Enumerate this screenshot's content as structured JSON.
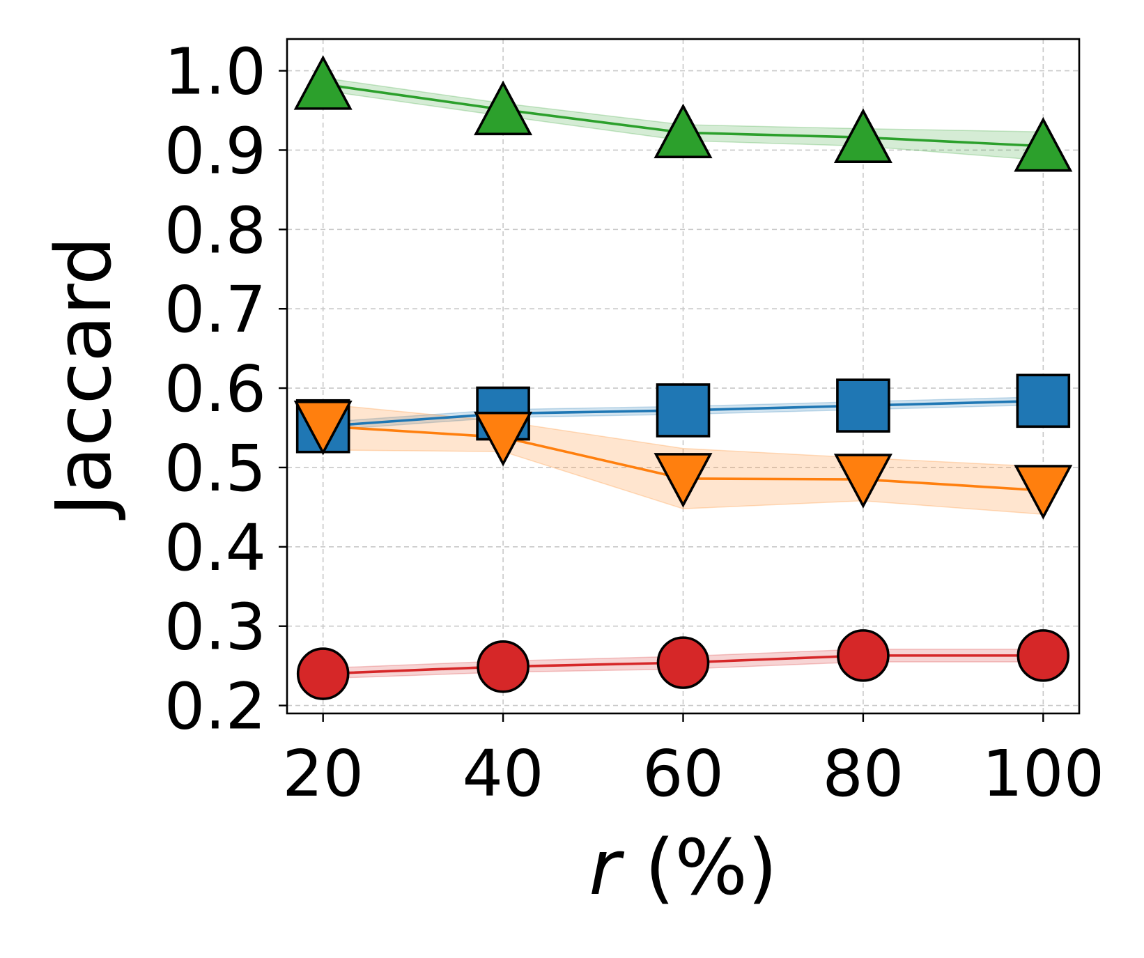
{
  "chart_data": {
    "type": "line",
    "title": "",
    "xlabel_var": "r",
    "xlabel_unit": " (%)",
    "ylabel": "Jaccard",
    "x": [
      20,
      40,
      60,
      80,
      100
    ],
    "x_tick_labels": [
      "20",
      "40",
      "60",
      "80",
      "100"
    ],
    "y_ticks": [
      0.2,
      0.3,
      0.4,
      0.5,
      0.6,
      0.7,
      0.8,
      0.9,
      1.0
    ],
    "y_tick_labels": [
      "0.2",
      "0.3",
      "0.4",
      "0.5",
      "0.6",
      "0.7",
      "0.8",
      "0.9",
      "1.0"
    ],
    "xlim": [
      16,
      104
    ],
    "ylim": [
      0.19,
      1.04
    ],
    "grid": true,
    "series": [
      {
        "name": "green",
        "color": "#2ca02c",
        "marker": "triangle-up",
        "values": [
          0.983,
          0.951,
          0.922,
          0.916,
          0.905
        ],
        "lower": [
          0.975,
          0.943,
          0.912,
          0.905,
          0.887
        ],
        "upper": [
          0.991,
          0.959,
          0.932,
          0.927,
          0.923
        ]
      },
      {
        "name": "blue",
        "color": "#1f77b4",
        "marker": "square",
        "values": [
          0.552,
          0.568,
          0.572,
          0.578,
          0.584
        ],
        "lower": [
          0.547,
          0.563,
          0.567,
          0.573,
          0.579
        ],
        "upper": [
          0.557,
          0.573,
          0.577,
          0.583,
          0.589
        ]
      },
      {
        "name": "orange",
        "color": "#ff7f0e",
        "marker": "triangle-down",
        "values": [
          0.552,
          0.538,
          0.486,
          0.485,
          0.471
        ],
        "lower": [
          0.522,
          0.52,
          0.448,
          0.458,
          0.441
        ],
        "upper": [
          0.58,
          0.558,
          0.524,
          0.512,
          0.501
        ]
      },
      {
        "name": "red",
        "color": "#d62728",
        "marker": "circle",
        "values": [
          0.24,
          0.249,
          0.254,
          0.263,
          0.263
        ],
        "lower": [
          0.234,
          0.242,
          0.246,
          0.255,
          0.255
        ],
        "upper": [
          0.247,
          0.256,
          0.262,
          0.271,
          0.271
        ]
      }
    ]
  }
}
